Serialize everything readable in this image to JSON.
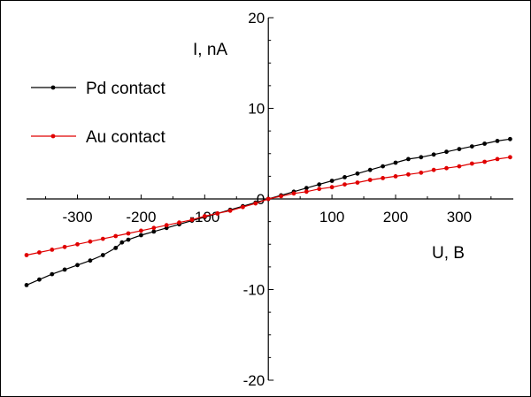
{
  "chart_data": {
    "type": "line",
    "title": "",
    "xlabel": "U, B",
    "ylabel": "I, nA",
    "xlim": [
      -380,
      385
    ],
    "ylim": [
      -20,
      20
    ],
    "x_ticks": [
      -300,
      -200,
      -100,
      0,
      100,
      200,
      300
    ],
    "y_ticks": [
      -20,
      -10,
      0,
      10,
      20
    ],
    "x_tick_labels": [
      "-300",
      "-200",
      "-100",
      "0",
      "100",
      "200",
      "300"
    ],
    "y_tick_labels": [
      "-20",
      "-10",
      "0",
      "10",
      "20"
    ],
    "grid": false,
    "legend": "top-left",
    "series": [
      {
        "name": "Pd contact",
        "color": "#000000",
        "x": [
          -380,
          -360,
          -340,
          -320,
          -300,
          -280,
          -260,
          -240,
          -230,
          -220,
          -200,
          -180,
          -160,
          -140,
          -120,
          -100,
          -80,
          -60,
          -40,
          -20,
          0,
          20,
          40,
          60,
          80,
          100,
          120,
          140,
          160,
          180,
          200,
          220,
          240,
          260,
          280,
          300,
          320,
          340,
          360,
          380
        ],
        "y": [
          -9.5,
          -8.9,
          -8.3,
          -7.8,
          -7.3,
          -6.8,
          -6.2,
          -5.4,
          -4.8,
          -4.5,
          -4.0,
          -3.6,
          -3.2,
          -2.8,
          -2.4,
          -2.0,
          -1.6,
          -1.2,
          -0.8,
          -0.4,
          0.0,
          0.4,
          0.8,
          1.2,
          1.6,
          2.0,
          2.4,
          2.8,
          3.2,
          3.6,
          4.0,
          4.4,
          4.6,
          4.9,
          5.2,
          5.5,
          5.8,
          6.1,
          6.4,
          6.6
        ]
      },
      {
        "name": "Au contact",
        "color": "#e00000",
        "x": [
          -380,
          -360,
          -340,
          -320,
          -300,
          -280,
          -260,
          -240,
          -220,
          -200,
          -180,
          -160,
          -140,
          -120,
          -100,
          -80,
          -60,
          -40,
          -20,
          0,
          20,
          40,
          60,
          80,
          100,
          120,
          140,
          160,
          180,
          200,
          220,
          240,
          260,
          280,
          300,
          320,
          340,
          360,
          380
        ],
        "y": [
          -6.2,
          -5.9,
          -5.6,
          -5.3,
          -5.0,
          -4.7,
          -4.4,
          -4.1,
          -3.8,
          -3.5,
          -3.2,
          -2.9,
          -2.6,
          -2.3,
          -1.9,
          -1.6,
          -1.3,
          -0.9,
          -0.5,
          0.0,
          0.3,
          0.6,
          0.8,
          1.1,
          1.3,
          1.6,
          1.8,
          2.1,
          2.3,
          2.5,
          2.7,
          2.9,
          3.2,
          3.4,
          3.6,
          3.9,
          4.1,
          4.4,
          4.6
        ]
      }
    ]
  }
}
